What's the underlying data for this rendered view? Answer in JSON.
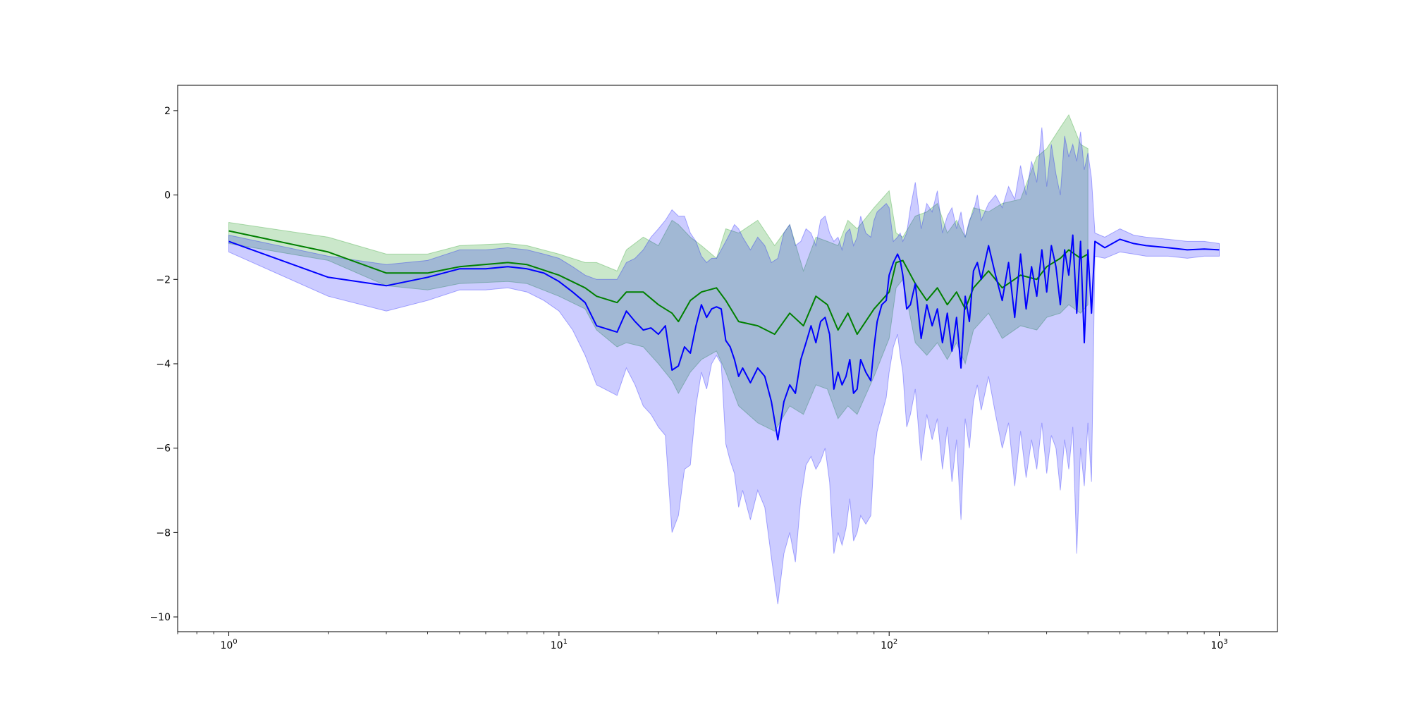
{
  "chart_data": {
    "type": "line",
    "title": "",
    "xlabel": "",
    "ylabel": "",
    "x_scale": "log",
    "xlim": [
      0.7,
      1500
    ],
    "ylim": [
      -10.35,
      2.6
    ],
    "grid": false,
    "x_ticks": [
      {
        "value": 1,
        "base": "10",
        "exp": "0"
      },
      {
        "value": 10,
        "base": "10",
        "exp": "1"
      },
      {
        "value": 100,
        "base": "10",
        "exp": "2"
      },
      {
        "value": 1000,
        "base": "10",
        "exp": "3"
      }
    ],
    "y_ticks": [
      {
        "value": 2,
        "label": "2"
      },
      {
        "value": 0,
        "label": "0"
      },
      {
        "value": -2,
        "label": "−2"
      },
      {
        "value": -4,
        "label": "−4"
      },
      {
        "value": -6,
        "label": "−6"
      },
      {
        "value": -8,
        "label": "−8"
      },
      {
        "value": -10,
        "label": "−10"
      }
    ],
    "series": [
      {
        "color": "#008000",
        "band_color": "#2ca02c",
        "band_opacity": 0.25,
        "x": [
          1,
          2,
          3,
          4,
          5,
          7,
          8,
          10,
          12,
          13,
          15,
          16,
          18,
          20,
          22,
          23,
          25,
          27,
          30,
          32,
          35,
          40,
          45,
          50,
          55,
          60,
          65,
          70,
          75,
          80,
          90,
          100,
          105,
          110,
          120,
          130,
          140,
          150,
          160,
          170,
          180,
          200,
          220,
          250,
          280,
          300,
          330,
          350,
          380,
          400
        ],
        "y": [
          -0.85,
          -1.35,
          -1.85,
          -1.85,
          -1.7,
          -1.6,
          -1.65,
          -1.9,
          -2.2,
          -2.4,
          -2.55,
          -2.3,
          -2.3,
          -2.6,
          -2.8,
          -3.0,
          -2.5,
          -2.3,
          -2.2,
          -2.5,
          -3.0,
          -3.1,
          -3.3,
          -2.8,
          -3.1,
          -2.4,
          -2.6,
          -3.2,
          -2.8,
          -3.3,
          -2.7,
          -2.3,
          -1.6,
          -1.55,
          -2.1,
          -2.5,
          -2.2,
          -2.6,
          -2.3,
          -2.7,
          -2.2,
          -1.8,
          -2.2,
          -1.9,
          -2.0,
          -1.7,
          -1.5,
          -1.3,
          -1.5,
          -1.4
        ],
        "lower": [
          -1.15,
          -1.55,
          -2.15,
          -2.25,
          -2.1,
          -2.05,
          -2.1,
          -2.4,
          -2.7,
          -3.2,
          -3.6,
          -3.5,
          -3.6,
          -4.0,
          -4.4,
          -4.7,
          -4.2,
          -3.9,
          -3.7,
          -4.2,
          -5.0,
          -5.4,
          -5.6,
          -5.0,
          -5.2,
          -4.5,
          -4.6,
          -5.3,
          -5.0,
          -5.2,
          -4.3,
          -3.4,
          -2.2,
          -2.0,
          -3.5,
          -3.8,
          -3.5,
          -3.9,
          -3.5,
          -4.0,
          -3.2,
          -2.8,
          -3.4,
          -3.1,
          -3.2,
          -2.9,
          -2.8,
          -2.6,
          -2.8,
          -2.6
        ],
        "upper": [
          -0.65,
          -1.0,
          -1.4,
          -1.4,
          -1.2,
          -1.15,
          -1.2,
          -1.4,
          -1.6,
          -1.6,
          -1.8,
          -1.3,
          -1.0,
          -1.2,
          -0.6,
          -0.7,
          -1.0,
          -1.2,
          -1.5,
          -0.8,
          -0.9,
          -0.6,
          -1.2,
          -0.7,
          -1.8,
          -1.0,
          -1.1,
          -1.2,
          -0.6,
          -0.8,
          -0.3,
          0.1,
          -0.9,
          -1.0,
          -0.5,
          -0.4,
          -0.2,
          -0.9,
          -0.6,
          -1.0,
          -0.3,
          -0.4,
          -0.2,
          -0.1,
          0.9,
          1.1,
          1.6,
          1.9,
          1.2,
          1.1
        ]
      },
      {
        "color": "#0000ff",
        "band_color": "#0000ff",
        "band_opacity": 0.2,
        "x": [
          1,
          2,
          3,
          4,
          5,
          6,
          7,
          8,
          9,
          10,
          11,
          12,
          13,
          15,
          16,
          17,
          18,
          19,
          20,
          21,
          22,
          23,
          24,
          25,
          26,
          27,
          28,
          29,
          30,
          31,
          32,
          33,
          34,
          35,
          36,
          38,
          40,
          42,
          44,
          46,
          48,
          50,
          52,
          54,
          56,
          58,
          60,
          62,
          64,
          66,
          68,
          70,
          72,
          74,
          76,
          78,
          80,
          82,
          85,
          88,
          90,
          92,
          95,
          98,
          100,
          103,
          106,
          108,
          110,
          113,
          116,
          120,
          125,
          130,
          135,
          140,
          145,
          150,
          155,
          160,
          165,
          170,
          175,
          180,
          185,
          190,
          200,
          210,
          220,
          230,
          240,
          250,
          260,
          270,
          280,
          290,
          300,
          310,
          320,
          330,
          340,
          350,
          360,
          370,
          380,
          390,
          400,
          410,
          420,
          450,
          500,
          550,
          600,
          700,
          800,
          900,
          1000
        ],
        "y": [
          -1.1,
          -1.95,
          -2.15,
          -1.95,
          -1.75,
          -1.75,
          -1.7,
          -1.75,
          -1.85,
          -2.05,
          -2.3,
          -2.55,
          -3.1,
          -3.25,
          -2.75,
          -3.0,
          -3.2,
          -3.15,
          -3.3,
          -3.1,
          -4.15,
          -4.05,
          -3.6,
          -3.75,
          -3.1,
          -2.6,
          -2.9,
          -2.7,
          -2.65,
          -2.7,
          -3.45,
          -3.6,
          -3.9,
          -4.3,
          -4.1,
          -4.45,
          -4.1,
          -4.3,
          -4.9,
          -5.8,
          -4.9,
          -4.5,
          -4.7,
          -3.9,
          -3.5,
          -3.1,
          -3.5,
          -3.0,
          -2.9,
          -3.3,
          -4.6,
          -4.2,
          -4.5,
          -4.3,
          -3.9,
          -4.7,
          -4.6,
          -3.9,
          -4.2,
          -4.4,
          -3.6,
          -3.0,
          -2.6,
          -2.5,
          -1.9,
          -1.6,
          -1.4,
          -1.55,
          -1.9,
          -2.7,
          -2.6,
          -2.1,
          -3.4,
          -2.6,
          -3.1,
          -2.7,
          -3.5,
          -2.8,
          -3.7,
          -2.9,
          -4.1,
          -2.4,
          -3.0,
          -1.8,
          -1.6,
          -2.0,
          -1.2,
          -1.9,
          -2.5,
          -1.6,
          -2.9,
          -1.4,
          -2.7,
          -1.7,
          -2.4,
          -1.3,
          -2.3,
          -1.2,
          -1.7,
          -2.6,
          -1.3,
          -1.9,
          -0.95,
          -2.8,
          -1.1,
          -3.5,
          -1.3,
          -2.8,
          -1.1,
          -1.25,
          -1.05,
          -1.15,
          -1.2,
          -1.25,
          -1.3,
          -1.28,
          -1.3
        ],
        "lower": [
          -1.35,
          -2.4,
          -2.75,
          -2.5,
          -2.25,
          -2.25,
          -2.2,
          -2.3,
          -2.5,
          -2.75,
          -3.2,
          -3.8,
          -4.5,
          -4.75,
          -4.1,
          -4.5,
          -5.0,
          -5.2,
          -5.5,
          -5.7,
          -8.0,
          -7.6,
          -6.5,
          -6.4,
          -5.0,
          -4.2,
          -4.6,
          -4.0,
          -3.8,
          -4.0,
          -5.9,
          -6.3,
          -6.6,
          -7.4,
          -7.0,
          -7.7,
          -7.0,
          -7.4,
          -8.6,
          -9.7,
          -8.5,
          -8.0,
          -8.7,
          -7.2,
          -6.4,
          -6.2,
          -6.5,
          -6.3,
          -6.0,
          -6.8,
          -8.5,
          -8.0,
          -8.3,
          -7.9,
          -7.2,
          -8.2,
          -8.0,
          -7.6,
          -7.8,
          -7.6,
          -6.2,
          -5.6,
          -5.2,
          -4.8,
          -4.2,
          -3.6,
          -3.3,
          -3.8,
          -4.2,
          -5.5,
          -5.2,
          -4.6,
          -6.3,
          -5.2,
          -5.8,
          -5.3,
          -6.5,
          -5.5,
          -6.8,
          -5.8,
          -7.7,
          -5.3,
          -6.0,
          -4.9,
          -4.5,
          -5.1,
          -4.3,
          -5.2,
          -6.0,
          -5.4,
          -6.9,
          -5.6,
          -6.7,
          -5.8,
          -6.5,
          -5.4,
          -6.6,
          -5.7,
          -6.0,
          -7.0,
          -5.8,
          -6.5,
          -5.5,
          -8.5,
          -6.0,
          -6.9,
          -5.4,
          -6.8,
          -1.45,
          -1.5,
          -1.35,
          -1.4,
          -1.45,
          -1.45,
          -1.5,
          -1.45,
          -1.45
        ],
        "upper": [
          -0.95,
          -1.45,
          -1.65,
          -1.55,
          -1.3,
          -1.3,
          -1.25,
          -1.3,
          -1.4,
          -1.5,
          -1.7,
          -1.9,
          -2.0,
          -2.0,
          -1.6,
          -1.5,
          -1.3,
          -1.0,
          -0.8,
          -0.6,
          -0.35,
          -0.5,
          -0.5,
          -0.9,
          -1.1,
          -1.45,
          -1.6,
          -1.5,
          -1.5,
          -1.3,
          -1.1,
          -0.9,
          -0.7,
          -0.8,
          -1.0,
          -1.3,
          -1.0,
          -1.2,
          -1.6,
          -1.5,
          -0.9,
          -0.7,
          -1.2,
          -1.1,
          -0.8,
          -0.9,
          -1.2,
          -0.6,
          -0.5,
          -0.9,
          -1.1,
          -1.0,
          -1.3,
          -0.9,
          -0.8,
          -1.2,
          -1.0,
          -0.5,
          -0.9,
          -1.0,
          -0.6,
          -0.4,
          -0.3,
          -0.2,
          -0.3,
          -1.1,
          -1.0,
          -0.9,
          -1.1,
          -0.9,
          -0.3,
          0.3,
          -0.8,
          -0.2,
          -0.4,
          0.1,
          -0.9,
          -0.5,
          -0.3,
          -0.8,
          -0.4,
          -1.0,
          -0.6,
          -0.4,
          0.0,
          -0.6,
          -0.2,
          0.0,
          -0.3,
          0.2,
          -0.1,
          0.7,
          0.0,
          0.8,
          0.3,
          1.6,
          0.2,
          1.2,
          0.5,
          0.0,
          1.4,
          0.9,
          1.2,
          0.8,
          1.5,
          0.6,
          1.0,
          0.4,
          -0.9,
          -1.0,
          -0.8,
          -0.95,
          -1.0,
          -1.05,
          -1.1,
          -1.1,
          -1.15
        ]
      }
    ]
  }
}
